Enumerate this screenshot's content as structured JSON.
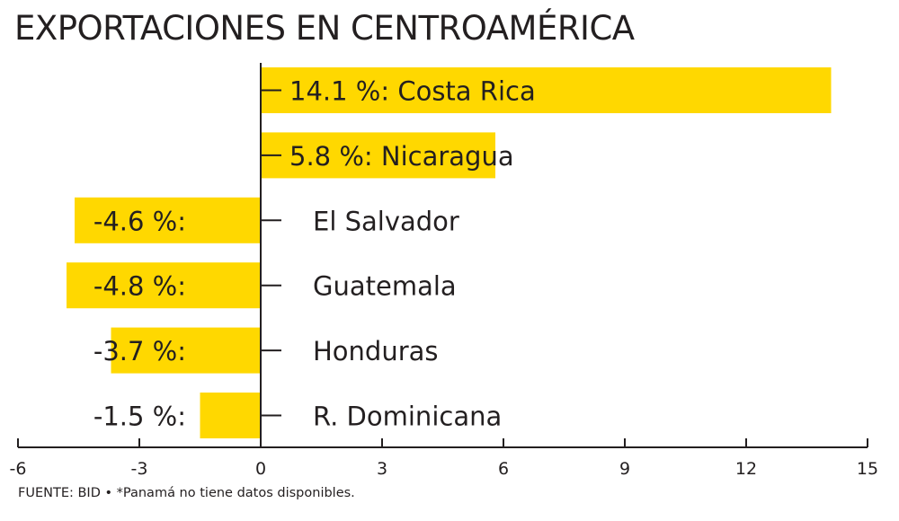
{
  "title": "EXPORTACIONES EN CENTROAMÉRICA",
  "footer": "FUENTE: BID • *Panamá no tiene datos disponibles.",
  "colors": {
    "bar": "#FFD800",
    "ink": "#231f20"
  },
  "chart_data": {
    "type": "bar",
    "orientation": "horizontal",
    "title": "EXPORTACIONES EN CENTROAMÉRICA",
    "categories": [
      "Costa Rica",
      "Nicaragua",
      "El Salvador",
      "Guatemala",
      "Honduras",
      "R. Dominicana"
    ],
    "values": [
      14.1,
      5.8,
      -4.6,
      -4.8,
      -3.7,
      -1.5
    ],
    "labels": [
      "14.1 %:",
      "5.8 %:",
      "-4.6 %:",
      "-4.8 %:",
      "-3.7 %:",
      "-1.5 %:"
    ],
    "xlim": [
      -6,
      15
    ],
    "xticks": [
      -6,
      -3,
      0,
      3,
      6,
      9,
      12,
      15
    ],
    "xlabel": "",
    "ylabel": "",
    "unit": "%",
    "grid": false
  }
}
